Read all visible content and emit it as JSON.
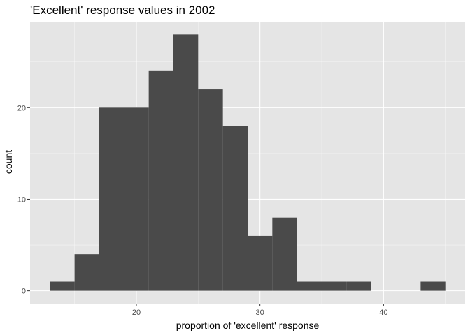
{
  "chart_data": {
    "type": "bar",
    "title": "'Excellent' response values in 2002",
    "xlabel": "proportion of 'excellent' response",
    "ylabel": "count",
    "bin_width": 2,
    "bins": [
      {
        "x0": 13,
        "x1": 15,
        "count": 1
      },
      {
        "x0": 15,
        "x1": 17,
        "count": 4
      },
      {
        "x0": 17,
        "x1": 19,
        "count": 20
      },
      {
        "x0": 19,
        "x1": 21,
        "count": 20
      },
      {
        "x0": 21,
        "x1": 23,
        "count": 24
      },
      {
        "x0": 23,
        "x1": 25,
        "count": 28
      },
      {
        "x0": 25,
        "x1": 27,
        "count": 22
      },
      {
        "x0": 27,
        "x1": 29,
        "count": 18
      },
      {
        "x0": 29,
        "x1": 31,
        "count": 6
      },
      {
        "x0": 31,
        "x1": 33,
        "count": 8
      },
      {
        "x0": 33,
        "x1": 35,
        "count": 1
      },
      {
        "x0": 35,
        "x1": 37,
        "count": 1
      },
      {
        "x0": 37,
        "x1": 39,
        "count": 1
      },
      {
        "x0": 39,
        "x1": 41,
        "count": 0
      },
      {
        "x0": 41,
        "x1": 43,
        "count": 0
      },
      {
        "x0": 43,
        "x1": 45,
        "count": 1
      }
    ],
    "xlim": [
      11.4,
      46.6
    ],
    "ylim": [
      -1.4,
      29.4
    ],
    "x_ticks": [
      20,
      30,
      40
    ],
    "x_tick_labels": [
      "20",
      "30",
      "40"
    ],
    "x_minor_ticks": [
      15,
      25,
      35,
      45
    ],
    "y_ticks": [
      0,
      10,
      20
    ],
    "y_tick_labels": [
      "0",
      "10",
      "20"
    ],
    "y_minor_ticks": [
      5,
      15,
      25
    ],
    "grid": true,
    "legend": "none",
    "colors": {
      "bar_fill": "#4a4a4a",
      "panel_background": "#e5e5e5",
      "grid_major": "#ffffff",
      "tick_label": "#4d4d4d"
    }
  }
}
